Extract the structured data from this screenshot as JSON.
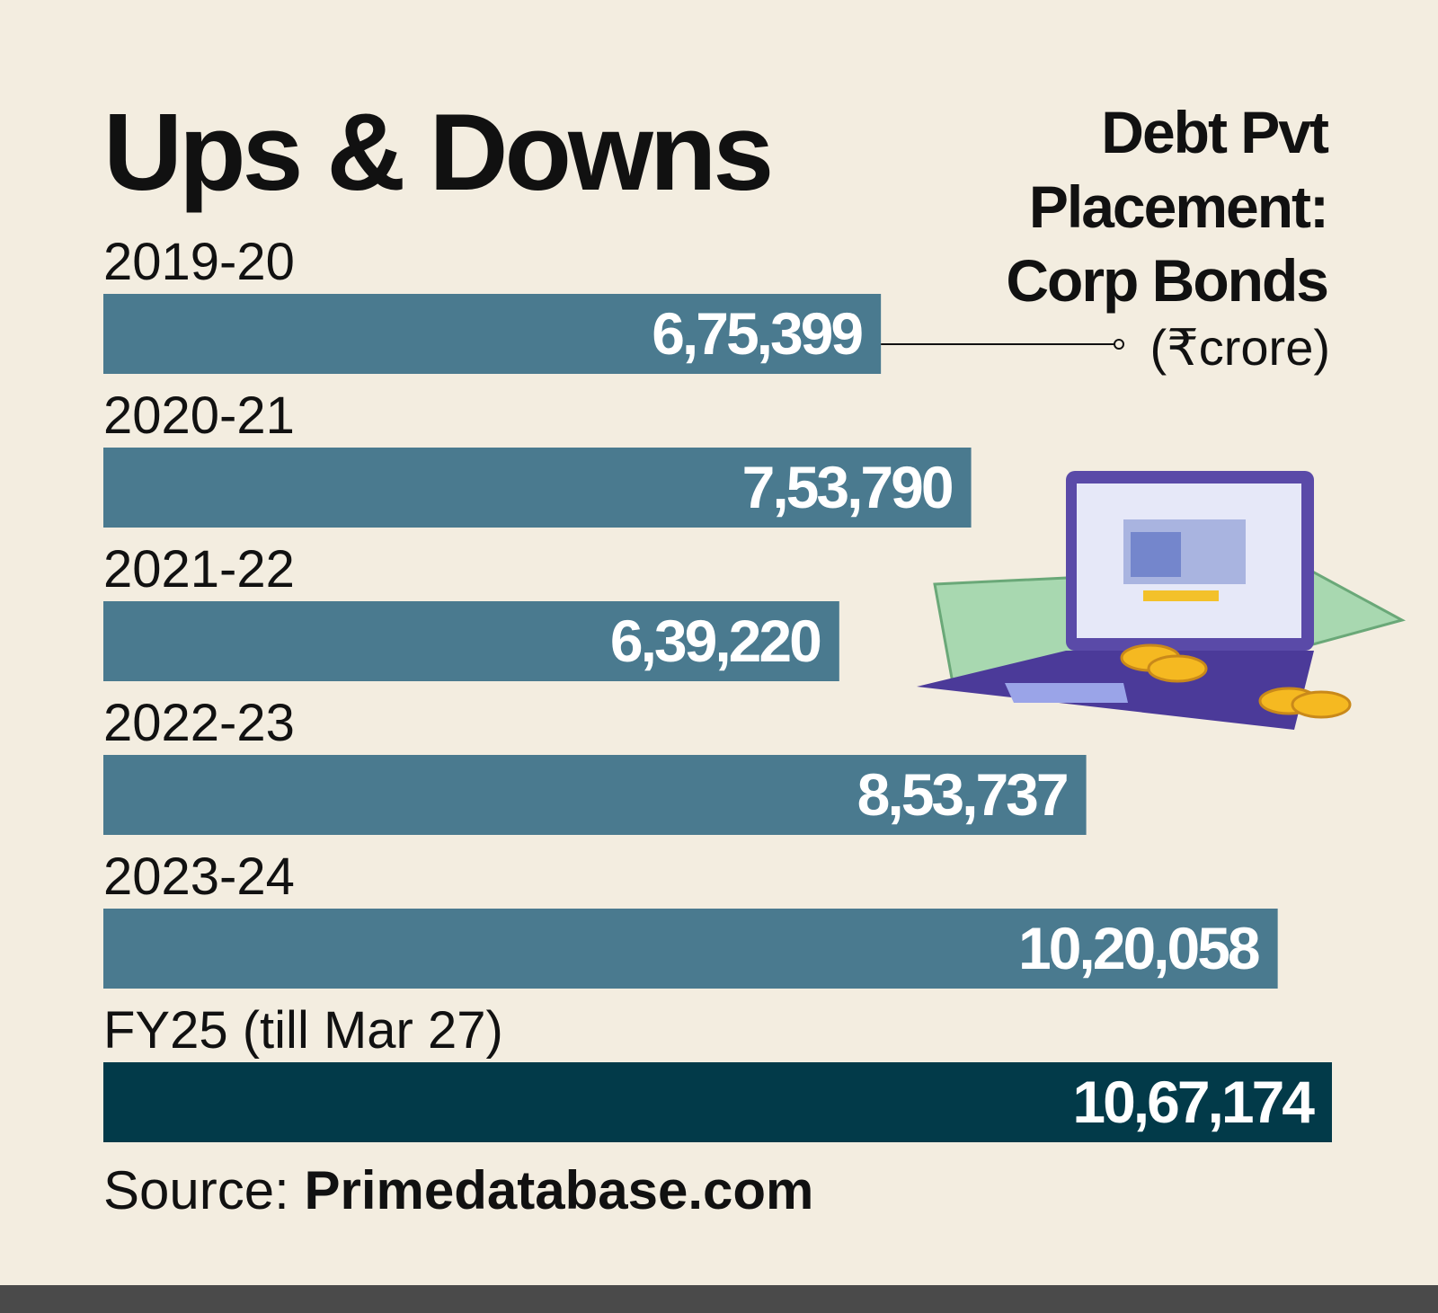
{
  "chart_data": {
    "type": "hbar",
    "title": "Ups & Downs",
    "subtitle": [
      "Debt Pvt",
      "Placement:",
      "Corp Bonds"
    ],
    "unit": "(₹crore)",
    "categories": [
      "2019-20",
      "2020-21",
      "2021-22",
      "2022-23",
      "2023-24",
      "FY25 (till Mar 27)"
    ],
    "values": [
      675399,
      753790,
      639220,
      853737,
      1020058,
      1067174
    ],
    "value_labels": [
      "6,75,399",
      "7,53,790",
      "6,39,220",
      "8,53,737",
      "10,20,058",
      "10,67,174"
    ],
    "colors": [
      "#4a7a8f",
      "#4a7a8f",
      "#4a7a8f",
      "#4a7a8f",
      "#4a7a8f",
      "#023a49"
    ],
    "source_label": "Source:",
    "source": "Primedatabase.com"
  }
}
